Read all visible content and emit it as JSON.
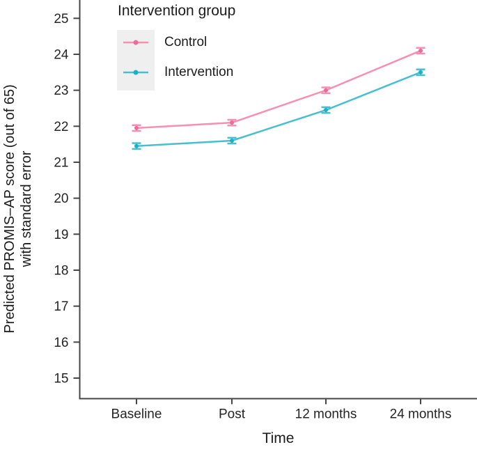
{
  "chart_data": {
    "type": "line",
    "legend_title": "Intervention group",
    "xlabel": "Time",
    "ylabel_lines": [
      "Predicted PROMIS–AP score (out of 65)",
      "with standard error"
    ],
    "categories": [
      "Baseline",
      "Post",
      "12 months",
      "24 months"
    ],
    "series": [
      {
        "name": "Control",
        "values": [
          21.95,
          22.1,
          23.0,
          24.1
        ],
        "se": 0.08,
        "line_color": "#f78fb0",
        "point_color": "#ec6b9d"
      },
      {
        "name": "Intervention",
        "values": [
          21.45,
          21.6,
          22.45,
          23.5
        ],
        "se": 0.08,
        "line_color": "#46c0cf",
        "point_color": "#1cafc6"
      }
    ],
    "yticks": [
      15,
      16,
      17,
      18,
      19,
      20,
      21,
      22,
      23,
      24,
      25
    ],
    "ylim_shown": [
      14.45,
      25.5
    ],
    "grid": false,
    "error_bars": true,
    "legend_position": "top-left-inside",
    "colors": {
      "axis": "#454545",
      "text": "#242424",
      "legend_key_bg": "#efefef",
      "background": "#ffffff"
    }
  }
}
